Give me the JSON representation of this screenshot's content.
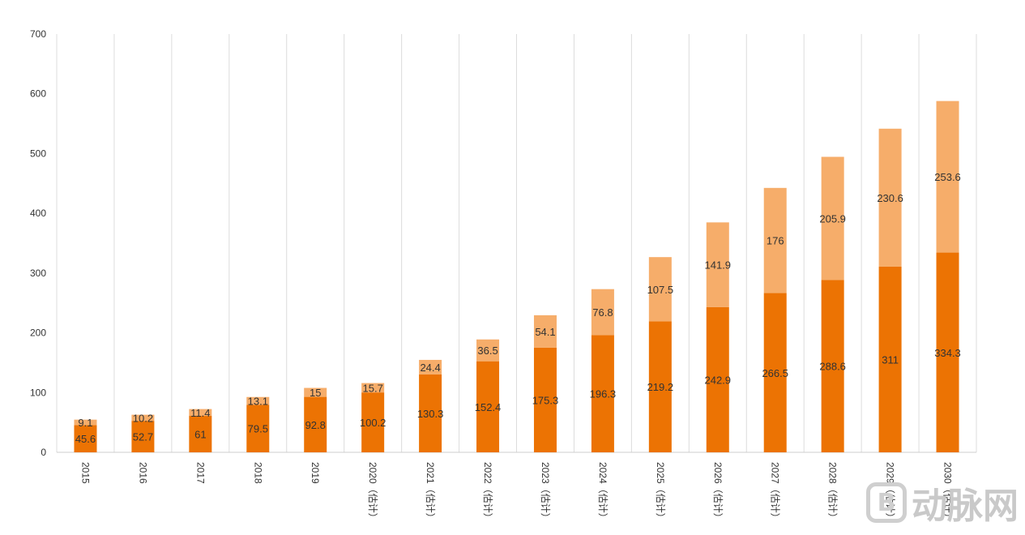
{
  "chart_data": {
    "type": "bar",
    "stacked": true,
    "title": "",
    "xlabel": "",
    "ylabel": "",
    "ylim": [
      0,
      700
    ],
    "yticks": [
      0,
      100,
      200,
      300,
      400,
      500,
      600,
      700
    ],
    "grid": "vertical",
    "legend": "none",
    "categories": [
      "2015",
      "2016",
      "2017",
      "2018",
      "2019",
      "2020（估计）",
      "2021（估计）",
      "2022（估计）",
      "2023（估计）",
      "2024（估计）",
      "2025（估计）",
      "2026（估计）",
      "2027（估计）",
      "2028（估计）",
      "2029（估计）",
      "2030（估计）"
    ],
    "series": [
      {
        "color": "#ec7303",
        "values": [
          45.6,
          52.7,
          61,
          79.5,
          92.8,
          100.2,
          130.3,
          152.4,
          175.3,
          196.3,
          219.2,
          242.9,
          266.5,
          288.6,
          311,
          334.3
        ]
      },
      {
        "color": "#f6ad6a",
        "values": [
          9.1,
          10.2,
          11.4,
          13.1,
          15,
          15.7,
          24.4,
          36.5,
          54.1,
          76.8,
          107.5,
          141.9,
          176,
          205.9,
          230.6,
          253.6
        ]
      }
    ]
  },
  "watermark": {
    "icon": "B",
    "text": "动脉网"
  }
}
